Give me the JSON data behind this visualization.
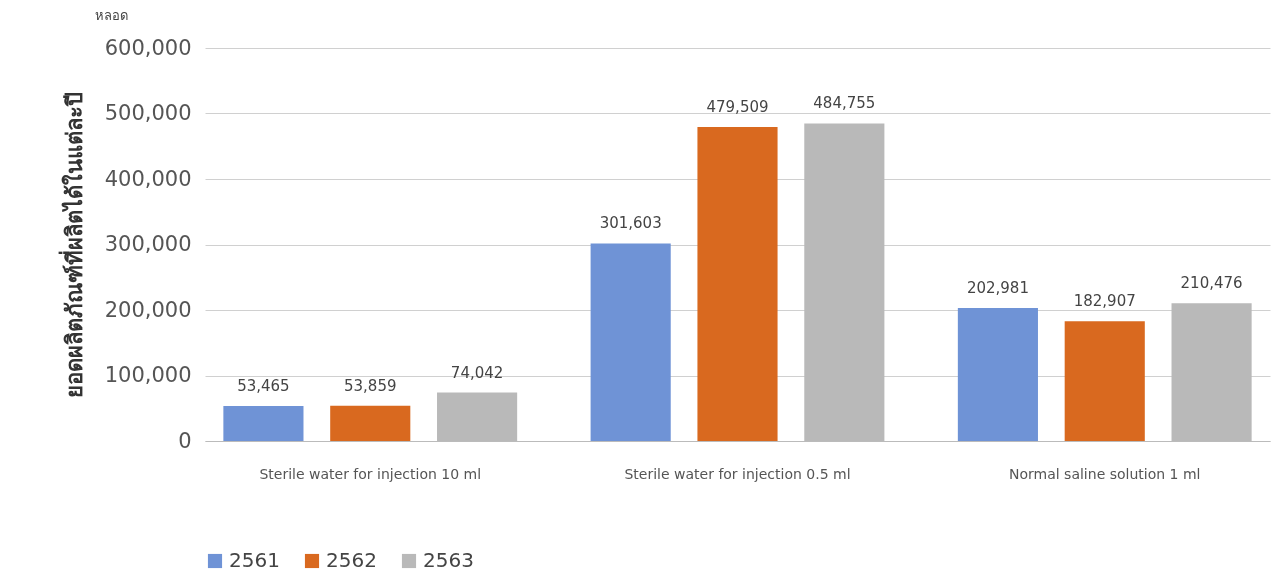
{
  "chart_data": {
    "type": "bar",
    "ylabel": "ยอดผลิตภัณฑ์ที่ผลิตได้ในแต่ละปี",
    "annotations": [
      "หลอด"
    ],
    "categories": [
      "Sterile water for injection 10 ml",
      "Sterile water for injection 0.5 ml",
      "Normal saline solution 1 ml"
    ],
    "series": [
      {
        "name": "2561",
        "color": "#6f93d6",
        "values": [
          53465,
          301603,
          202981
        ],
        "value_labels": [
          "53,465",
          "301,603",
          "202,981"
        ]
      },
      {
        "name": "2562",
        "color": "#d9691f",
        "values": [
          53859,
          479509,
          182907
        ],
        "value_labels": [
          "53,859",
          "479,509",
          "182,907"
        ]
      },
      {
        "name": "2563",
        "color": "#b9b9b9",
        "values": [
          74042,
          484755,
          210476
        ],
        "value_labels": [
          "74,042",
          "484,755",
          "210,476"
        ]
      }
    ],
    "ylim": [
      0,
      600000
    ],
    "yticks": [
      0,
      {
        "value": 100000,
        "label": "100,000"
      },
      {
        "value": 200000,
        "label": "200,000"
      },
      {
        "value": 300000,
        "label": "300,000"
      },
      {
        "value": 400000,
        "label": "400,000"
      },
      {
        "value": 500000,
        "label": "500,000"
      },
      {
        "value": 600000,
        "label": "600,000"
      }
    ],
    "grid": "y",
    "legend": "bottom"
  }
}
